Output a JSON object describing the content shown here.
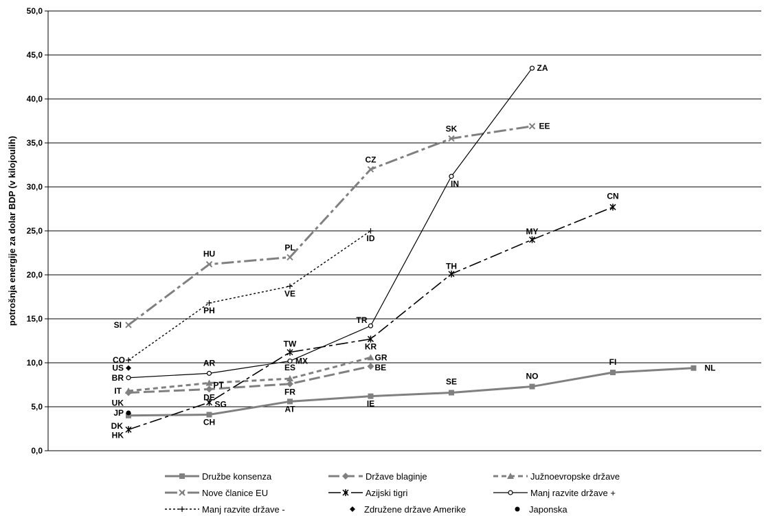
{
  "chart_data": {
    "type": "line",
    "title": "",
    "xlabel": "",
    "ylabel": "potrošnja energije za dolar BDP (v kilojoulih)",
    "ylim": [
      0,
      50
    ],
    "yticks": [
      0,
      5,
      10,
      15,
      20,
      25,
      30,
      35,
      40,
      45,
      50
    ],
    "ytick_labels": [
      "0,0",
      "5,0",
      "10,0",
      "15,0",
      "20,0",
      "25,0",
      "30,0",
      "35,0",
      "40,0",
      "45,0",
      "50,0"
    ],
    "xlim": [
      0.5,
      8.5
    ],
    "grid": "horizontal",
    "legend_position": "bottom",
    "series": [
      {
        "name": "Družbe konsenza",
        "color": "#808080",
        "dash": "solid",
        "width": 3,
        "marker": "square",
        "points": [
          {
            "label": "DK",
            "x": 1,
            "y": 4.0
          },
          {
            "label": "CH",
            "x": 2,
            "y": 4.1
          },
          {
            "label": "AT",
            "x": 3,
            "y": 5.6
          },
          {
            "label": "IE",
            "x": 4,
            "y": 6.2
          },
          {
            "label": "SE",
            "x": 5,
            "y": 6.6
          },
          {
            "label": "NO",
            "x": 6,
            "y": 7.3
          },
          {
            "label": "FI",
            "x": 7,
            "y": 8.9
          },
          {
            "label": "NL",
            "x": 8,
            "y": 9.4
          }
        ]
      },
      {
        "name": "Države blaginje",
        "color": "#808080",
        "dash": "long",
        "width": 3,
        "marker": "diamond",
        "points": [
          {
            "label": "UK",
            "x": 1,
            "y": 6.6
          },
          {
            "label": "DE",
            "x": 2,
            "y": 7.0
          },
          {
            "label": "FR",
            "x": 3,
            "y": 7.6
          },
          {
            "label": "BE",
            "x": 4,
            "y": 9.6
          }
        ]
      },
      {
        "name": "Južnoevropske države",
        "color": "#808080",
        "dash": "short",
        "width": 3,
        "marker": "triangle",
        "points": [
          {
            "label": "IT",
            "x": 1,
            "y": 6.8
          },
          {
            "label": "PT",
            "x": 2,
            "y": 7.7
          },
          {
            "label": "ES",
            "x": 3,
            "y": 8.2
          },
          {
            "label": "GR",
            "x": 4,
            "y": 10.6
          }
        ]
      },
      {
        "name": "Nove članice EU",
        "color": "#808080",
        "dash": "dashdot",
        "width": 3,
        "marker": "x",
        "points": [
          {
            "label": "SI",
            "x": 1,
            "y": 14.3
          },
          {
            "label": "HU",
            "x": 2,
            "y": 21.2
          },
          {
            "label": "PL",
            "x": 3,
            "y": 22.0
          },
          {
            "label": "CZ",
            "x": 4,
            "y": 32.0
          },
          {
            "label": "SK",
            "x": 5,
            "y": 35.5
          },
          {
            "label": "EE",
            "x": 6,
            "y": 36.9
          }
        ]
      },
      {
        "name": "Azijski tigri",
        "color": "#000000",
        "dash": "dashdot",
        "width": 1.6,
        "marker": "star",
        "points": [
          {
            "label": "HK",
            "x": 1,
            "y": 2.4
          },
          {
            "label": "SG",
            "x": 2,
            "y": 5.5
          },
          {
            "label": "TW",
            "x": 3,
            "y": 11.2
          },
          {
            "label": "KR",
            "x": 4,
            "y": 12.7
          },
          {
            "label": "TH",
            "x": 5,
            "y": 20.1
          },
          {
            "label": "MY",
            "x": 6,
            "y": 24.0
          },
          {
            "label": "CN",
            "x": 7,
            "y": 27.7
          }
        ]
      },
      {
        "name": "Manj razvite države +",
        "color": "#000000",
        "dash": "solid",
        "width": 1.2,
        "marker": "circle",
        "points": [
          {
            "label": "BR",
            "x": 1,
            "y": 8.3
          },
          {
            "label": "AR",
            "x": 2,
            "y": 8.8
          },
          {
            "label": "MX",
            "x": 3,
            "y": 10.2
          },
          {
            "label": "TR",
            "x": 4,
            "y": 14.2
          },
          {
            "label": "IN",
            "x": 5,
            "y": 31.2
          },
          {
            "label": "ZA",
            "x": 6,
            "y": 43.5
          }
        ]
      },
      {
        "name": "Manj razvite države -",
        "color": "#000000",
        "dash": "dotted",
        "width": 1.4,
        "marker": "plus",
        "points": [
          {
            "label": "CO",
            "x": 1,
            "y": 10.3
          },
          {
            "label": "PH",
            "x": 2,
            "y": 16.8
          },
          {
            "label": "VE",
            "x": 3,
            "y": 18.7
          },
          {
            "label": "ID",
            "x": 4,
            "y": 25.0
          }
        ]
      },
      {
        "name": "Združene države Amerike",
        "color": "#000000",
        "dash": "none",
        "width": 0,
        "marker": "diamond-filled",
        "points": [
          {
            "label": "US",
            "x": 1,
            "y": 9.4
          }
        ]
      },
      {
        "name": "Japonska",
        "color": "#000000",
        "dash": "none",
        "width": 0,
        "marker": "dot",
        "points": [
          {
            "label": "JP",
            "x": 1,
            "y": 4.3
          }
        ]
      }
    ]
  }
}
